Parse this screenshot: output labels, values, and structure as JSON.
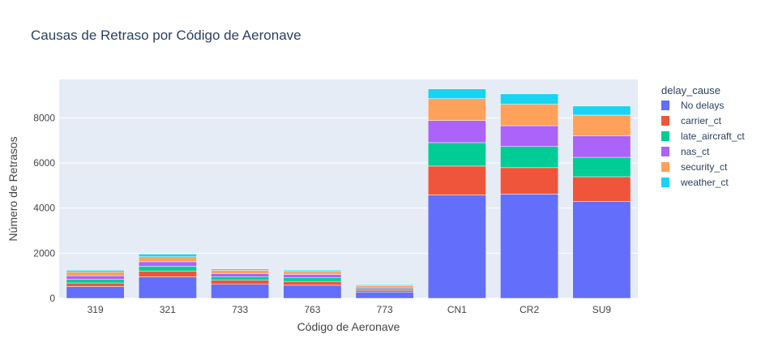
{
  "chart_data": {
    "type": "bar",
    "barmode": "stack",
    "title": "Causas de Retraso por Código de Aeronave",
    "xlabel": "Código de Aeronave",
    "ylabel": "Número de Retrasos",
    "ylim": [
      0,
      9700
    ],
    "yticks": [
      0,
      2000,
      4000,
      6000,
      8000
    ],
    "ytick_labels": [
      "0",
      "2000",
      "4000",
      "6000",
      "8000"
    ],
    "grid": true,
    "legend_title": "delay_cause",
    "legend_position": "right",
    "categories": [
      "319",
      "321",
      "733",
      "763",
      "773",
      "CN1",
      "CR2",
      "SU9"
    ],
    "series": [
      {
        "name": "No delays",
        "color": "#636efa",
        "values": [
          520,
          950,
          620,
          580,
          280,
          4580,
          4620,
          4300
        ]
      },
      {
        "name": "carrier_ct",
        "color": "#ef553b",
        "values": [
          160,
          260,
          180,
          170,
          80,
          1280,
          1170,
          1090
        ]
      },
      {
        "name": "late_aircraft_ct",
        "color": "#00cc96",
        "values": [
          160,
          210,
          160,
          160,
          75,
          1040,
          940,
          860
        ]
      },
      {
        "name": "nas_ct",
        "color": "#ab63fa",
        "values": [
          160,
          200,
          140,
          150,
          60,
          980,
          920,
          950
        ]
      },
      {
        "name": "security_ct",
        "color": "#ffa15a",
        "values": [
          160,
          220,
          140,
          130,
          70,
          970,
          950,
          920
        ]
      },
      {
        "name": "weather_ct",
        "color": "#19d3f3",
        "values": [
          80,
          120,
          60,
          60,
          35,
          430,
          460,
          400
        ]
      }
    ]
  }
}
